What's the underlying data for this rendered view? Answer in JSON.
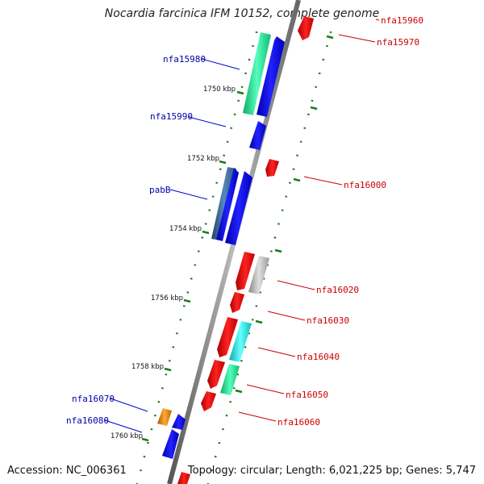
{
  "title": "Nocardia farcinica IFM 10152, complete genome",
  "footer": {
    "accession": "Accession: NC_006361",
    "summary": "Topology: circular; Length: 6,021,225 bp; Genes: 5,747"
  },
  "colors": {
    "backbone": "#8a8a8a",
    "tick": "#1a7a1a",
    "forward_label": "#0000aa",
    "reverse_label": "#cc0000",
    "forward_gene": "#0000ee",
    "reverse_gene": "#ee0000",
    "green_gene": "#22ee99",
    "steel_gene": "#4477aa",
    "grey_gene": "#bbbbbb",
    "cyan_gene": "#22eeee",
    "orange_gene": "#ee8800"
  },
  "kbp_ticks": [
    {
      "label": "1750 kbp"
    },
    {
      "label": "1752 kbp"
    },
    {
      "label": "1754 kbp"
    },
    {
      "label": "1756 kbp"
    },
    {
      "label": "1758 kbp"
    },
    {
      "label": "1760 kbp"
    }
  ],
  "labels": {
    "forward": [
      "nfa15980",
      "nfa15990",
      "pabB",
      "nfa16070",
      "nfa16080"
    ],
    "reverse": [
      "nfa15960",
      "nfa15970",
      "nfa16000",
      "nfa16020",
      "nfa16030",
      "nfa16040",
      "nfa16050",
      "nfa16060"
    ]
  }
}
